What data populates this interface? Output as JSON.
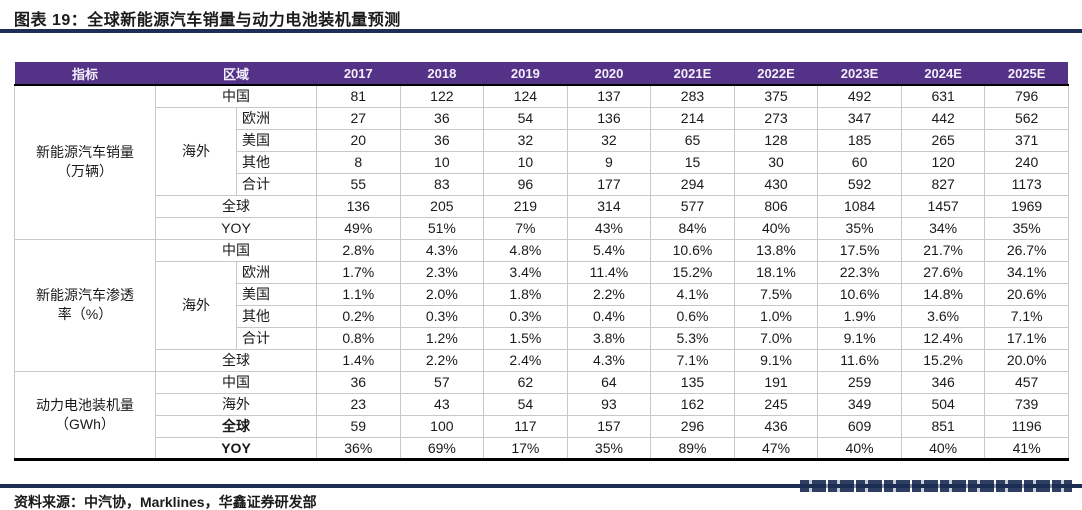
{
  "title": "图表 19：全球新能源汽车销量与动力电池装机量预测",
  "source": "资料来源：中汽协，Marklines，华鑫证券研发部",
  "colors": {
    "header_bg": "#533287",
    "rule_navy": "#1c2e54",
    "grid_line": "#c8c8c8",
    "header_text": "#f3effa"
  },
  "table": {
    "columns": [
      "指标",
      "区域",
      "2017",
      "2018",
      "2019",
      "2020",
      "2021E",
      "2022E",
      "2023E",
      "2024E",
      "2025E"
    ],
    "sections": [
      {
        "indicator_lines": [
          "新能源汽车销量",
          "（万辆）"
        ],
        "rows": [
          {
            "region": "中国",
            "values": [
              "81",
              "122",
              "124",
              "137",
              "283",
              "375",
              "492",
              "631",
              "796"
            ]
          },
          {
            "region": "欧洲",
            "group": "海外",
            "values": [
              "27",
              "36",
              "54",
              "136",
              "214",
              "273",
              "347",
              "442",
              "562"
            ]
          },
          {
            "region": "美国",
            "group": "海外",
            "values": [
              "20",
              "36",
              "32",
              "32",
              "65",
              "128",
              "185",
              "265",
              "371"
            ]
          },
          {
            "region": "其他",
            "group": "海外",
            "values": [
              "8",
              "10",
              "10",
              "9",
              "15",
              "30",
              "60",
              "120",
              "240"
            ]
          },
          {
            "region": "合计",
            "group": "海外",
            "values": [
              "55",
              "83",
              "96",
              "177",
              "294",
              "430",
              "592",
              "827",
              "1173"
            ]
          },
          {
            "region": "全球",
            "values": [
              "136",
              "205",
              "219",
              "314",
              "577",
              "806",
              "1084",
              "1457",
              "1969"
            ]
          },
          {
            "region": "YOY",
            "values": [
              "49%",
              "51%",
              "7%",
              "43%",
              "84%",
              "40%",
              "35%",
              "34%",
              "35%"
            ]
          }
        ]
      },
      {
        "indicator_lines": [
          "新能源汽车渗透",
          "率（%）"
        ],
        "rows": [
          {
            "region": "中国",
            "values": [
              "2.8%",
              "4.3%",
              "4.8%",
              "5.4%",
              "10.6%",
              "13.8%",
              "17.5%",
              "21.7%",
              "26.7%"
            ]
          },
          {
            "region": "欧洲",
            "group": "海外",
            "values": [
              "1.7%",
              "2.3%",
              "3.4%",
              "11.4%",
              "15.2%",
              "18.1%",
              "22.3%",
              "27.6%",
              "34.1%"
            ]
          },
          {
            "region": "美国",
            "group": "海外",
            "values": [
              "1.1%",
              "2.0%",
              "1.8%",
              "2.2%",
              "4.1%",
              "7.5%",
              "10.6%",
              "14.8%",
              "20.6%"
            ]
          },
          {
            "region": "其他",
            "group": "海外",
            "values": [
              "0.2%",
              "0.3%",
              "0.3%",
              "0.4%",
              "0.6%",
              "1.0%",
              "1.9%",
              "3.6%",
              "7.1%"
            ]
          },
          {
            "region": "合计",
            "group": "海外",
            "values": [
              "0.8%",
              "1.2%",
              "1.5%",
              "3.8%",
              "5.3%",
              "7.0%",
              "9.1%",
              "12.4%",
              "17.1%"
            ]
          },
          {
            "region": "全球",
            "values": [
              "1.4%",
              "2.2%",
              "2.4%",
              "4.3%",
              "7.1%",
              "9.1%",
              "11.6%",
              "15.2%",
              "20.0%"
            ]
          }
        ]
      },
      {
        "indicator_lines": [
          "动力电池装机量",
          "（GWh）"
        ],
        "rows": [
          {
            "region": "中国",
            "values": [
              "36",
              "57",
              "62",
              "64",
              "135",
              "191",
              "259",
              "346",
              "457"
            ]
          },
          {
            "region": "海外",
            "values": [
              "23",
              "43",
              "54",
              "93",
              "162",
              "245",
              "349",
              "504",
              "739"
            ]
          },
          {
            "region": "全球",
            "bold": true,
            "values": [
              "59",
              "100",
              "117",
              "157",
              "296",
              "436",
              "609",
              "851",
              "1196"
            ]
          },
          {
            "region": "YOY",
            "bold": true,
            "values": [
              "36%",
              "69%",
              "17%",
              "35%",
              "89%",
              "47%",
              "40%",
              "40%",
              "41%"
            ]
          }
        ]
      }
    ]
  }
}
